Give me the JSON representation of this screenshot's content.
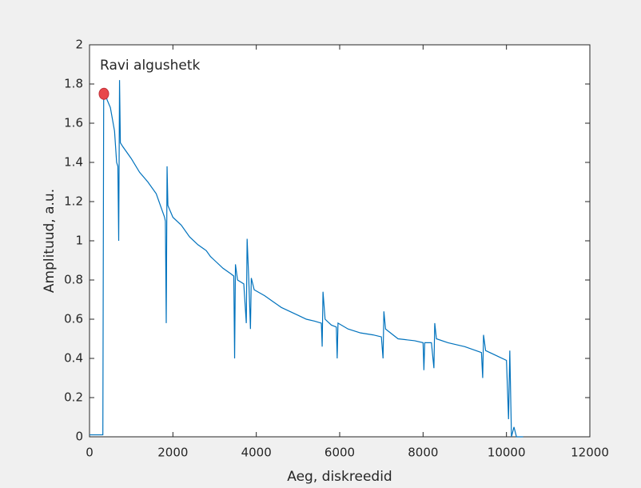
{
  "chart_data": {
    "type": "line",
    "xlabel": "Aeg, diskreedid",
    "ylabel": "Amplituud, a.u.",
    "annotation": "Ravi algushetk",
    "color": "#0072bd",
    "x": [
      0,
      320,
      340,
      380,
      420,
      500,
      600,
      650,
      680,
      700,
      720,
      740,
      800,
      1000,
      1200,
      1400,
      1600,
      1800,
      1820,
      1840,
      1860,
      1880,
      2000,
      2200,
      2400,
      2600,
      2800,
      2900,
      3000,
      3200,
      3400,
      3460,
      3480,
      3500,
      3550,
      3700,
      3760,
      3780,
      3820,
      3860,
      3880,
      3950,
      4200,
      4400,
      4600,
      4800,
      5000,
      5200,
      5400,
      5560,
      5580,
      5600,
      5650,
      5800,
      5920,
      5940,
      5960,
      6200,
      6500,
      6800,
      7000,
      7040,
      7060,
      7100,
      7400,
      7800,
      8000,
      8020,
      8040,
      8200,
      8260,
      8280,
      8320,
      8600,
      9000,
      9400,
      9430,
      9450,
      9500,
      9800,
      10000,
      10050,
      10080,
      10120,
      10180,
      10240,
      10400
    ],
    "values": [
      0.01,
      0.01,
      1.75,
      1.76,
      1.72,
      1.68,
      1.56,
      1.4,
      1.38,
      1.0,
      1.82,
      1.5,
      1.48,
      1.42,
      1.35,
      1.3,
      1.24,
      1.12,
      1.1,
      0.58,
      1.38,
      1.18,
      1.12,
      1.08,
      1.02,
      0.98,
      0.95,
      0.92,
      0.9,
      0.86,
      0.83,
      0.82,
      0.4,
      0.88,
      0.8,
      0.78,
      0.58,
      1.01,
      0.8,
      0.55,
      0.81,
      0.75,
      0.72,
      0.69,
      0.66,
      0.64,
      0.62,
      0.6,
      0.59,
      0.58,
      0.46,
      0.74,
      0.6,
      0.57,
      0.56,
      0.4,
      0.58,
      0.55,
      0.53,
      0.52,
      0.51,
      0.4,
      0.64,
      0.55,
      0.5,
      0.49,
      0.48,
      0.34,
      0.48,
      0.48,
      0.35,
      0.58,
      0.5,
      0.48,
      0.46,
      0.43,
      0.3,
      0.52,
      0.44,
      0.41,
      0.39,
      0.09,
      0.44,
      0.0,
      0.05,
      0.0,
      0.0
    ],
    "marker": {
      "x": 345,
      "y": 1.75,
      "color": "#e8474a"
    },
    "xlim": [
      0,
      12000
    ],
    "xticks": [
      0,
      2000,
      4000,
      6000,
      8000,
      10000,
      12000
    ],
    "ylim": [
      0,
      2
    ],
    "yticks": [
      0,
      0.2,
      0.4,
      0.6,
      0.8,
      1,
      1.2,
      1.4,
      1.6,
      1.8,
      2
    ],
    "grid": false
  }
}
